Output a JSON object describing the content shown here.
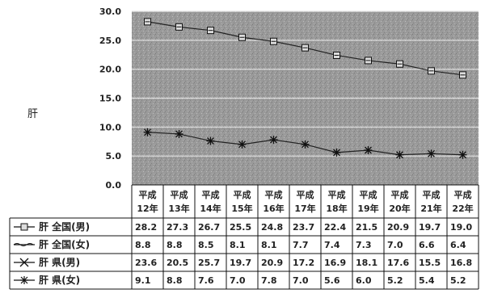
{
  "chart_data": {
    "type": "line",
    "ylabel": "肝",
    "ylim": [
      0,
      30
    ],
    "yticks": [
      "0.0",
      "5.0",
      "10.0",
      "15.0",
      "20.0",
      "25.0",
      "30.0"
    ],
    "categories": [
      [
        "平成",
        "12年"
      ],
      [
        "平成",
        "13年"
      ],
      [
        "平成",
        "14年"
      ],
      [
        "平成",
        "15年"
      ],
      [
        "平成",
        "16年"
      ],
      [
        "平成",
        "17年"
      ],
      [
        "平成",
        "18年"
      ],
      [
        "平成",
        "19年"
      ],
      [
        "平成",
        "20年"
      ],
      [
        "平成",
        "21年"
      ],
      [
        "平成",
        "22年"
      ]
    ],
    "grid": true,
    "legend": "data table below plot",
    "series": [
      {
        "name": "肝 全国(男)",
        "marker": "square",
        "plotted": true,
        "values": [
          28.2,
          27.3,
          26.7,
          25.5,
          24.8,
          23.7,
          22.4,
          21.5,
          20.9,
          19.7,
          19.0
        ],
        "labels": [
          "28.2",
          "27.3",
          "26.7",
          "25.5",
          "24.8",
          "23.7",
          "22.4",
          "21.5",
          "20.9",
          "19.7",
          "19.0"
        ]
      },
      {
        "name": "肝 全国(女)",
        "marker": "none",
        "plotted": false,
        "values": [
          8.8,
          8.8,
          8.5,
          8.1,
          8.1,
          7.7,
          7.4,
          7.3,
          7.0,
          6.6,
          6.4
        ],
        "labels": [
          "8.8",
          "8.8",
          "8.5",
          "8.1",
          "8.1",
          "7.7",
          "7.4",
          "7.3",
          "7.0",
          "6.6",
          "6.4"
        ]
      },
      {
        "name": "肝 県(男)",
        "marker": "x",
        "plotted": false,
        "values": [
          23.6,
          20.5,
          25.7,
          19.7,
          20.9,
          17.2,
          16.9,
          18.1,
          17.6,
          15.5,
          16.8
        ],
        "labels": [
          "23.6",
          "20.5",
          "25.7",
          "19.7",
          "20.9",
          "17.2",
          "16.9",
          "18.1",
          "17.6",
          "15.5",
          "16.8"
        ]
      },
      {
        "name": "肝 県(女)",
        "marker": "asterisk",
        "plotted": true,
        "values": [
          9.1,
          8.8,
          7.6,
          7.0,
          7.8,
          7.0,
          5.6,
          6.0,
          5.2,
          5.4,
          5.2
        ],
        "labels": [
          "9.1",
          "8.8",
          "7.6",
          "7.0",
          "7.8",
          "7.0",
          "5.6",
          "6.0",
          "5.2",
          "5.4",
          "5.2"
        ]
      }
    ],
    "colors": {
      "plot_background": "#9a9a9a",
      "grid": "#e4e4e4",
      "line": "#222222",
      "text": "#222222"
    }
  }
}
